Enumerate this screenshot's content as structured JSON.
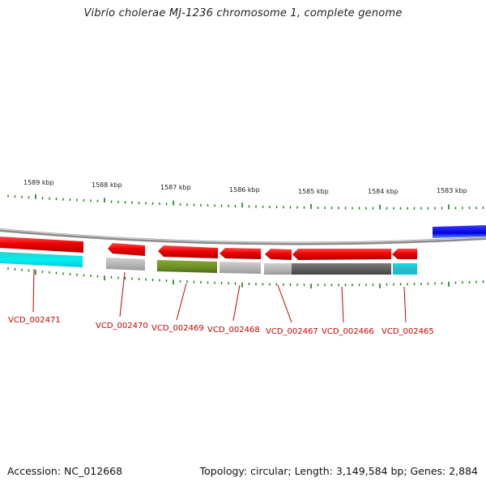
{
  "title": "Vibrio cholerae MJ-1236 chromosome 1, complete genome",
  "footer": {
    "accession": "Accession: NC_012668",
    "summary": "Topology: circular; Length: 3,149,584 bp; Genes: 2,884"
  },
  "scale_labels": [
    "1589 kbp",
    "1588 kbp",
    "1587 kbp",
    "1586 kbp",
    "1585 kbp",
    "1584 kbp",
    "1583 kbp"
  ],
  "gene_labels": [
    "VCD_002471",
    "VCD_002470",
    "VCD_002469",
    "VCD_002468",
    "VCD_002467",
    "VCD_002466",
    "VCD_002465"
  ],
  "colors": {
    "forward_gene": "#dd0000",
    "reverse_gene_highlight": "#0000ee",
    "cyan_feature": "#00e0e0",
    "olive_feature": "#6b8e23",
    "gray_feature": "#b0b0b0",
    "dark_gray_feature": "#606060",
    "tick_green": "#1a7a1a",
    "backbone": "#888888",
    "label_red": "#cc0000"
  }
}
